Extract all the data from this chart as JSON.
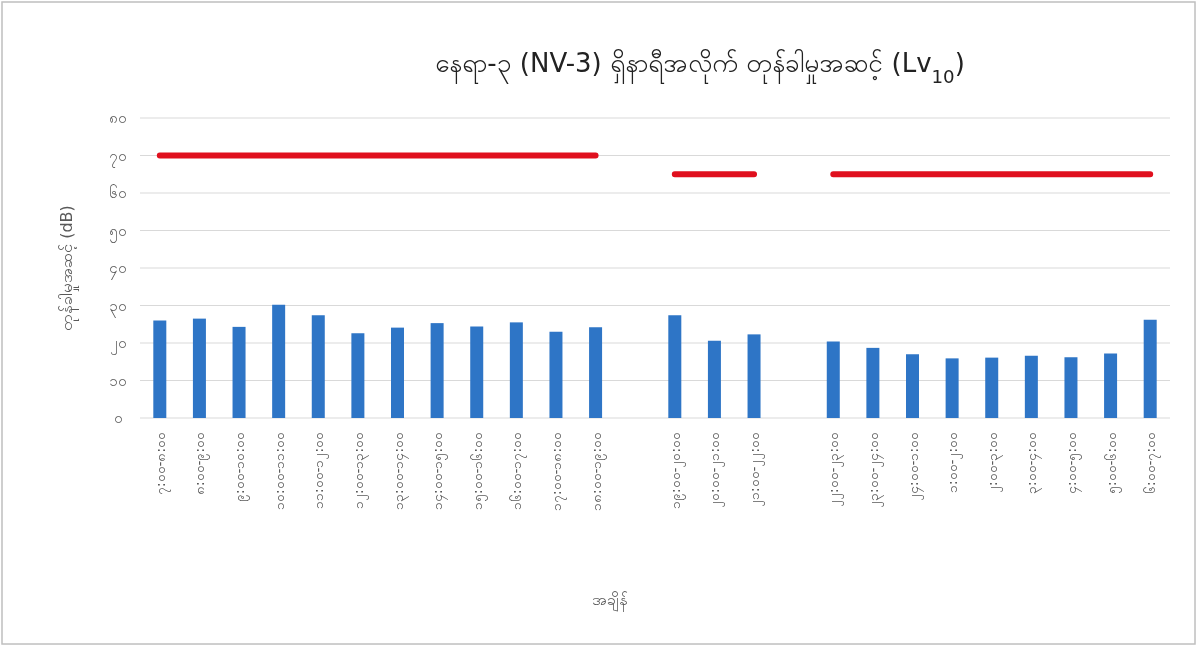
{
  "chart_data": {
    "type": "bar",
    "title": "နေရာ-၃ (NV-3) ရှိနာရီအလိုက် တုန်ခါမှုအဆင့် (Lv$_{10}$)",
    "xlabel": "အချိန်",
    "ylabel": "တုန်ခါမှုအဆင့် (dB)",
    "categories": [
      "၇:၀၀-၈:၀၀",
      "၈:၀၀-၉:၀၀",
      "၉:၀၀-၁၀:၀၀",
      "၁၀:၀၀-၁၁:၀၀",
      "၁၁:၀၀-၁၂:၀၀",
      "၁၂:၀၀-၁၃:၀၀",
      "၁၃:၀၀-၁၄:၀၀",
      "၁၄:၀၀-၁၅:၀၀",
      "၁၅:၀၀-၁၆:၀၀",
      "၁၆:၀၀-၁၇:၀၀",
      "၁၇:၀၀-၁၈:၀၀",
      "၁၈:၀၀-၁၉:၀၀",
      null,
      "၁၉:၀၀-၂၀:၀၀",
      "၂၀:၀၀-၂၁:၀၀",
      "၂၁:၀၀-၂၂:၀၀",
      null,
      "၂၂:၀၀-၂၃:၀၀",
      "၂၃:၀၀-၂၄:၀၀",
      "၂၄:၀၀-၁:၀၀",
      "၁:၀၀-၂:၀၀",
      "၂:၀၀-၃:၀၀",
      "၃:၀၀-၄:၀၀",
      "၄:၀၀-၅:၀၀",
      "၅:၀၀-၆:၀၀",
      "၆:၀၀-၇:၀၀"
    ],
    "series": [
      {
        "color": "#2e75c6",
        "values": [
          26.0,
          26.5,
          24.3,
          30.2,
          27.4,
          22.6,
          24.1,
          25.3,
          24.4,
          25.5,
          23.0,
          24.2,
          null,
          27.4,
          20.6,
          22.3,
          null,
          20.4,
          18.7,
          17.0,
          15.9,
          16.1,
          16.6,
          16.2,
          17.2,
          26.2
        ]
      },
      {
        "type": "line",
        "color": "#e0101e",
        "values": [
          70,
          70,
          70,
          70,
          70,
          70,
          70,
          70,
          70,
          70,
          70,
          70,
          null,
          65,
          65,
          65,
          null,
          65,
          65,
          65,
          65,
          65,
          65,
          65,
          65,
          65
        ]
      }
    ],
    "ylim": [
      0,
      80
    ],
    "yticks": [
      {
        "value": 0,
        "label": "၀"
      },
      {
        "value": 10,
        "label": "၁၀"
      },
      {
        "value": 20,
        "label": "၂၀"
      },
      {
        "value": 30,
        "label": "၃၀"
      },
      {
        "value": 40,
        "label": "၄၀"
      },
      {
        "value": 50,
        "label": "၅၀"
      },
      {
        "value": 60,
        "label": "၆၀"
      },
      {
        "value": 70,
        "label": "၇၀"
      },
      {
        "value": 80,
        "label": "၈၀"
      }
    ],
    "grid": "y"
  }
}
